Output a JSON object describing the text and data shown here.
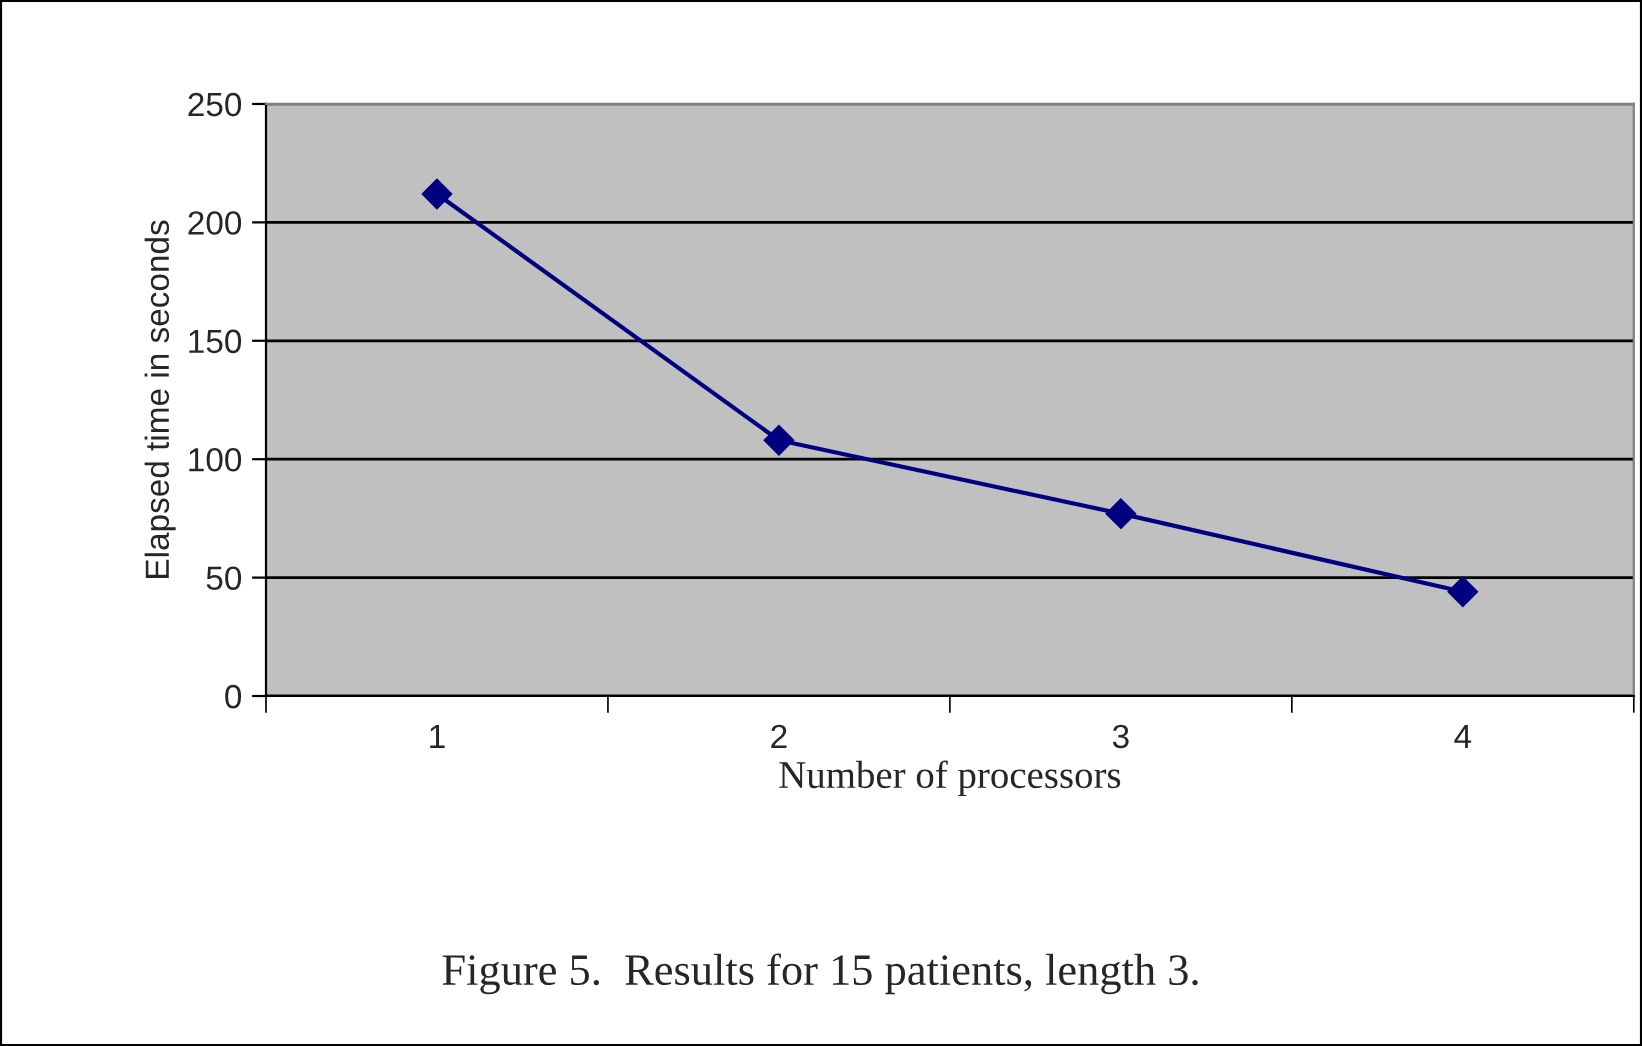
{
  "chart_data": {
    "type": "line",
    "xlabel": "Number of processors",
    "ylabel": "Elapsed time in seconds",
    "categories": [
      "1",
      "2",
      "3",
      "4"
    ],
    "series": [
      {
        "color": "#000080",
        "values": [
          212,
          108,
          77,
          44
        ]
      }
    ],
    "ylim": [
      0,
      250
    ],
    "yticks": [
      0,
      50,
      100,
      150,
      200,
      250
    ],
    "grid": "y",
    "marker": "diamond",
    "line_style": "solid",
    "annotations": [
      "Figure 5.  Results for 15 patients, length 3."
    ]
  }
}
